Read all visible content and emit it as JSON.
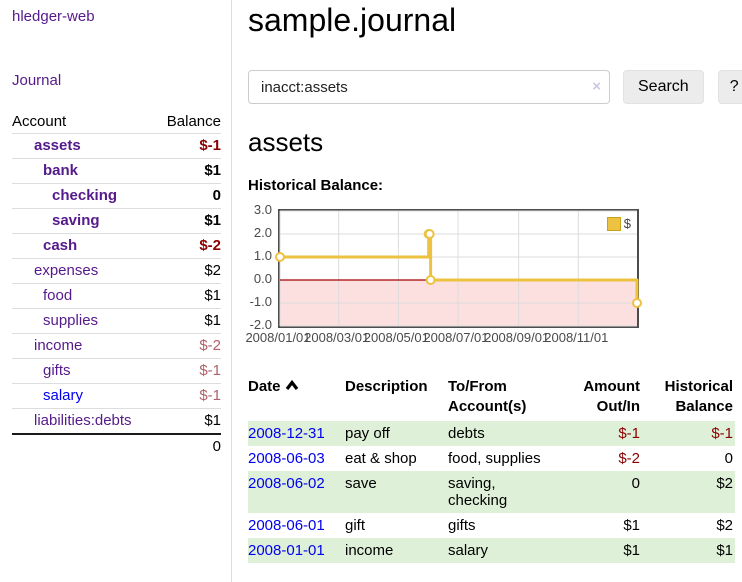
{
  "sidebar": {
    "brand": "hledger-web",
    "journal_link": "Journal",
    "accounts": {
      "col_account": "Account",
      "col_balance": "Balance",
      "rows": [
        {
          "name": "assets",
          "balance": "$-1",
          "depth": 1,
          "bold": true,
          "tone": "neg-strong",
          "link": "purple"
        },
        {
          "name": "bank",
          "balance": "$1",
          "depth": 2,
          "bold": true,
          "tone": "",
          "link": "purple"
        },
        {
          "name": "checking",
          "balance": "0",
          "depth": 3,
          "bold": true,
          "tone": "",
          "link": "purple"
        },
        {
          "name": "saving",
          "balance": "$1",
          "depth": 3,
          "bold": true,
          "tone": "",
          "link": "purple"
        },
        {
          "name": "cash",
          "balance": "$-2",
          "depth": 2,
          "bold": true,
          "tone": "neg-strong",
          "link": "purple"
        },
        {
          "name": "expenses",
          "balance": "$2",
          "depth": 1,
          "bold": false,
          "tone": "",
          "link": "purple"
        },
        {
          "name": "food",
          "balance": "$1",
          "depth": 2,
          "bold": false,
          "tone": "",
          "link": "purple"
        },
        {
          "name": "supplies",
          "balance": "$1",
          "depth": 2,
          "bold": false,
          "tone": "",
          "link": "purple"
        },
        {
          "name": "income",
          "balance": "$-2",
          "depth": 1,
          "bold": false,
          "tone": "neg-soft",
          "link": "purple"
        },
        {
          "name": "gifts",
          "balance": "$-1",
          "depth": 2,
          "bold": false,
          "tone": "neg-soft",
          "link": "purple"
        },
        {
          "name": "salary",
          "balance": "$-1",
          "depth": 2,
          "bold": false,
          "tone": "neg-soft",
          "link": "blue"
        },
        {
          "name": "liabilities:debts",
          "balance": "$1",
          "depth": 1,
          "bold": false,
          "tone": "",
          "link": "purple"
        }
      ],
      "total": "0"
    }
  },
  "main": {
    "title": "sample.journal",
    "search": {
      "value": "inacct:assets",
      "clear_icon": "×",
      "search_button": "Search",
      "help_button": "?"
    },
    "account_title": "assets",
    "section_label": "Historical Balance:"
  },
  "chart_data": {
    "type": "line",
    "title": "Historical Balance",
    "steps": true,
    "series": [
      {
        "name": "$",
        "color": "#edc240",
        "points": [
          [
            "2008-01-01",
            1
          ],
          [
            "2008-06-01",
            2
          ],
          [
            "2008-06-02",
            2
          ],
          [
            "2008-06-03",
            0
          ],
          [
            "2008-12-31",
            -1
          ]
        ]
      }
    ],
    "x_range": [
      "2008-01-01",
      "2008-12-31"
    ],
    "xtick_labels": [
      "2008/01/01",
      "2008/03/01",
      "2008/05/01",
      "2008/07/01",
      "2008/09/01",
      "2008/11/01"
    ],
    "ytick_labels": [
      "3.0",
      "2.0",
      "1.0",
      "0.0",
      "-1.0",
      "-2.0"
    ],
    "ylim": [
      -2,
      3
    ],
    "grid": true,
    "legend": {
      "label": "$",
      "position": "top-right"
    },
    "negative_region_color": "#fcdfdf",
    "zero_line_color": "#a40000",
    "gridline_color": "#dcdcdc"
  },
  "transactions": {
    "headers": {
      "date": "Date",
      "description": "Description",
      "accounts": "To/From\nAccount(s)",
      "amount": "Amount\nOut/In",
      "balance": "Historical\nBalance"
    },
    "rows": [
      {
        "date": "2008-12-31",
        "description": "pay off",
        "accounts": "debts",
        "amount": "$-1",
        "balance": "$-1"
      },
      {
        "date": "2008-06-03",
        "description": "eat & shop",
        "accounts": "food, supplies",
        "amount": "$-2",
        "balance": "0"
      },
      {
        "date": "2008-06-02",
        "description": "save",
        "accounts": "saving,\nchecking",
        "amount": "0",
        "balance": "$2"
      },
      {
        "date": "2008-06-01",
        "description": "gift",
        "accounts": "gifts",
        "amount": "$1",
        "balance": "$2"
      },
      {
        "date": "2008-01-01",
        "description": "income",
        "accounts": "salary",
        "amount": "$1",
        "balance": "$1"
      }
    ]
  },
  "colors": {
    "link_purple": "#551a8b",
    "link_blue": "#0000ee",
    "negative_strong": "#8b0000",
    "negative_soft": "#b0606a",
    "row_alt_green": "#dff0d8",
    "series_gold": "#edc240"
  }
}
